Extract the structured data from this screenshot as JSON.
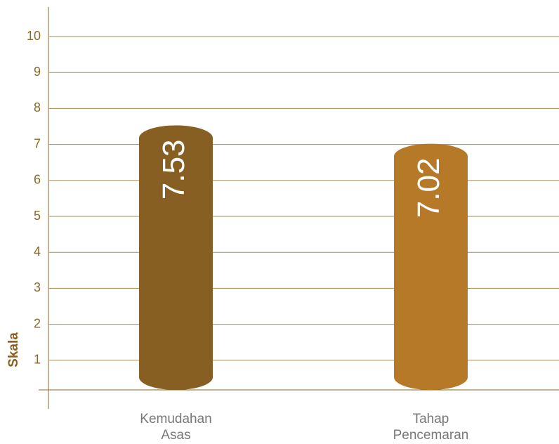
{
  "chart_data": {
    "type": "bar",
    "y_label": "Skala",
    "categories": [
      "Kemudahan Asas",
      "Tahap Pencemaran"
    ],
    "values": [
      7.53,
      7.02
    ],
    "colors": [
      "#875f22",
      "#b57927"
    ],
    "ylim": [
      0,
      10
    ],
    "yticks": [
      1,
      2,
      3,
      4,
      5,
      6,
      7,
      8,
      9,
      10
    ],
    "grid": true
  }
}
